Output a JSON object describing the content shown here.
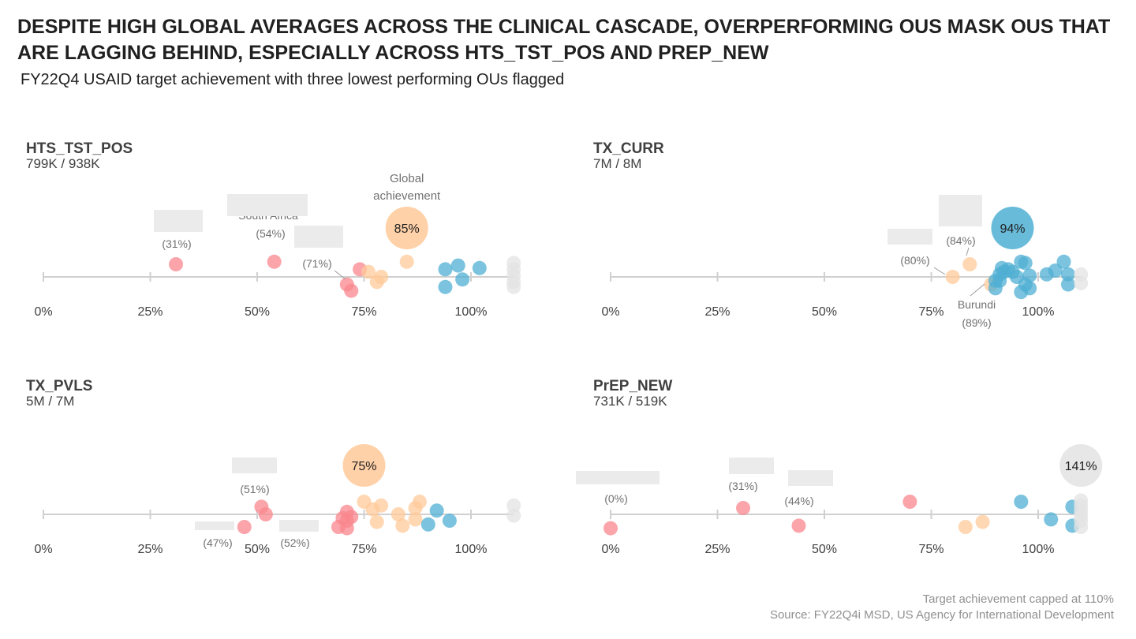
{
  "header": {
    "title": "DESPITE HIGH GLOBAL AVERAGES ACROSS THE CLINICAL CASCADE, OVERPERFORMING OUS MASK OUS THAT ARE LAGGING BEHIND, ESPECIALLY ACROSS HTS_TST_POS AND PREP_NEW",
    "subtitle": "FY22Q4 USAID target achievement with three lowest performing OUs flagged"
  },
  "caption": {
    "line1": "Target achievement capped at 110%",
    "line2": "Source: FY22Q4i MSD, US Agency for International Development"
  },
  "colors": {
    "low": "#F9878E",
    "mid": "#FFC999",
    "high": "#4FAFD3",
    "capped": "#E3E3E3",
    "axis": "#D0D0D0",
    "redaction": "#EBEBEB"
  },
  "global_label": "Global achievement",
  "chart_data": [
    {
      "type": "scatter",
      "indicator": "HTS_TST_POS",
      "totals": "799K / 938K",
      "x_ticks": [
        "0%",
        "25%",
        "50%",
        "75%",
        "100%"
      ],
      "xlim": [
        0,
        110
      ],
      "global": {
        "value": 85,
        "label": "85%"
      },
      "points": [
        {
          "x": 31,
          "y": 0.5
        },
        {
          "x": 54,
          "y": 0.6
        },
        {
          "x": 71,
          "y": -0.3
        },
        {
          "x": 72,
          "y": -0.55
        },
        {
          "x": 74,
          "y": 0.3
        },
        {
          "x": 76,
          "y": 0.2
        },
        {
          "x": 78,
          "y": -0.2
        },
        {
          "x": 79,
          "y": 0.0
        },
        {
          "x": 85,
          "y": 0.6
        },
        {
          "x": 94,
          "y": 0.3
        },
        {
          "x": 94,
          "y": -0.4
        },
        {
          "x": 97,
          "y": 0.45
        },
        {
          "x": 98,
          "y": -0.1
        },
        {
          "x": 102,
          "y": 0.35
        },
        {
          "x": 110,
          "y": 0.55
        },
        {
          "x": 110,
          "y": 0.3
        },
        {
          "x": 110,
          "y": 0.05
        },
        {
          "x": 110,
          "y": -0.2
        },
        {
          "x": 110,
          "y": -0.4
        }
      ],
      "flagged": [
        {
          "ref": 31,
          "pct": "(31%)",
          "name": "",
          "placement": "above",
          "has_redaction": true
        },
        {
          "ref": 54,
          "pct": "(54%)",
          "name": "South Africa",
          "placement": "above",
          "has_redaction": true
        },
        {
          "ref": 71,
          "pct": "(71%)",
          "name": "",
          "placement": "above",
          "has_redaction": true
        }
      ]
    },
    {
      "type": "scatter",
      "indicator": "TX_CURR",
      "totals": "7M / 8M",
      "x_ticks": [
        "0%",
        "25%",
        "50%",
        "75%",
        "100%"
      ],
      "xlim": [
        0,
        110
      ],
      "global": {
        "value": 94,
        "label": "94%"
      },
      "points": [
        {
          "x": 80,
          "y": 0.0
        },
        {
          "x": 84,
          "y": 0.5
        },
        {
          "x": 89,
          "y": -0.3
        },
        {
          "x": 90,
          "y": -0.15
        },
        {
          "x": 90,
          "y": -0.45
        },
        {
          "x": 91,
          "y": 0.1
        },
        {
          "x": 91,
          "y": -0.15
        },
        {
          "x": 91.5,
          "y": 0.35
        },
        {
          "x": 92,
          "y": 0.2
        },
        {
          "x": 93,
          "y": 0.3
        },
        {
          "x": 94,
          "y": 0.2
        },
        {
          "x": 95,
          "y": 0.0
        },
        {
          "x": 96,
          "y": 0.6
        },
        {
          "x": 96,
          "y": -0.6
        },
        {
          "x": 97,
          "y": 0.55
        },
        {
          "x": 97,
          "y": -0.3
        },
        {
          "x": 98,
          "y": -0.45
        },
        {
          "x": 98,
          "y": 0.05
        },
        {
          "x": 102,
          "y": 0.1
        },
        {
          "x": 104,
          "y": 0.25
        },
        {
          "x": 106,
          "y": 0.6
        },
        {
          "x": 107,
          "y": 0.1
        },
        {
          "x": 107,
          "y": -0.3
        },
        {
          "x": 110,
          "y": 0.1
        },
        {
          "x": 110,
          "y": -0.25
        }
      ],
      "flagged": [
        {
          "ref": 80,
          "pct": "(80%)",
          "name": "",
          "placement": "left",
          "has_redaction": true
        },
        {
          "ref": 84,
          "pct": "(84%)",
          "name": "",
          "placement": "above",
          "has_redaction": true
        },
        {
          "ref": 89,
          "pct": "(89%)",
          "name": "Burundi",
          "placement": "below",
          "has_redaction": false
        }
      ]
    },
    {
      "type": "scatter",
      "indicator": "TX_PVLS",
      "totals": "5M / 7M",
      "x_ticks": [
        "0%",
        "25%",
        "50%",
        "75%",
        "100%"
      ],
      "xlim": [
        0,
        110
      ],
      "global": {
        "value": 75,
        "label": "75%"
      },
      "points": [
        {
          "x": 47,
          "y": -0.5
        },
        {
          "x": 51,
          "y": 0.3
        },
        {
          "x": 52,
          "y": 0.0
        },
        {
          "x": 69,
          "y": -0.5
        },
        {
          "x": 70,
          "y": -0.15
        },
        {
          "x": 71,
          "y": 0.1
        },
        {
          "x": 71,
          "y": -0.55
        },
        {
          "x": 71,
          "y": -0.25
        },
        {
          "x": 72,
          "y": -0.1
        },
        {
          "x": 75,
          "y": 0.5
        },
        {
          "x": 77,
          "y": 0.2
        },
        {
          "x": 78,
          "y": -0.3
        },
        {
          "x": 79,
          "y": 0.35
        },
        {
          "x": 83,
          "y": 0.0
        },
        {
          "x": 84,
          "y": -0.45
        },
        {
          "x": 87,
          "y": -0.2
        },
        {
          "x": 87,
          "y": 0.25
        },
        {
          "x": 88,
          "y": 0.5
        },
        {
          "x": 90,
          "y": -0.4
        },
        {
          "x": 92,
          "y": 0.15
        },
        {
          "x": 95,
          "y": -0.25
        },
        {
          "x": 110,
          "y": 0.35
        },
        {
          "x": 110,
          "y": -0.05
        }
      ],
      "flagged": [
        {
          "ref": 51,
          "pct": "(51%)",
          "name": "",
          "placement": "above",
          "has_redaction": true
        },
        {
          "ref": 47,
          "pct": "(47%)",
          "name": "",
          "placement": "below",
          "has_redaction": true
        },
        {
          "ref": 52,
          "pct": "(52%)",
          "name": "",
          "placement": "below",
          "has_redaction": true
        }
      ]
    },
    {
      "type": "scatter",
      "indicator": "PrEP_NEW",
      "totals": "731K / 519K",
      "x_ticks": [
        "0%",
        "25%",
        "50%",
        "75%",
        "100%"
      ],
      "xlim": [
        0,
        110
      ],
      "global": {
        "value": 141,
        "label": "141%",
        "capped_at": 110
      },
      "points": [
        {
          "x": 0,
          "y": -0.55
        },
        {
          "x": 31,
          "y": 0.25
        },
        {
          "x": 44,
          "y": -0.45
        },
        {
          "x": 70,
          "y": 0.5
        },
        {
          "x": 83,
          "y": -0.5
        },
        {
          "x": 87,
          "y": -0.3
        },
        {
          "x": 96,
          "y": 0.5
        },
        {
          "x": 103,
          "y": -0.2
        },
        {
          "x": 108,
          "y": 0.3
        },
        {
          "x": 108,
          "y": -0.45
        },
        {
          "x": 110,
          "y": 0.55
        },
        {
          "x": 110,
          "y": 0.35
        },
        {
          "x": 110,
          "y": 0.15
        },
        {
          "x": 110,
          "y": -0.05
        },
        {
          "x": 110,
          "y": -0.25
        },
        {
          "x": 110,
          "y": -0.5
        }
      ],
      "flagged": [
        {
          "ref": 0,
          "pct": "(0%)",
          "name": "",
          "placement": "above",
          "has_redaction": true
        },
        {
          "ref": 31,
          "pct": "(31%)",
          "name": "",
          "placement": "above",
          "has_redaction": true
        },
        {
          "ref": 44,
          "pct": "(44%)",
          "name": "",
          "placement": "above",
          "has_redaction": true
        }
      ]
    }
  ]
}
